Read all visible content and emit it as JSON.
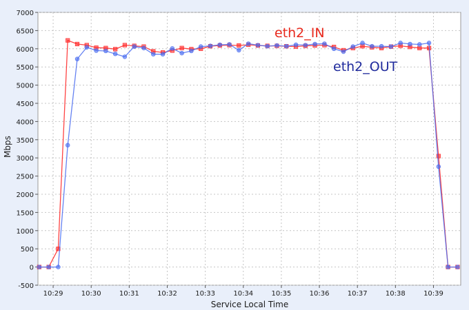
{
  "chart_data": {
    "type": "line",
    "title": "",
    "xlabel": "Service Local Time",
    "ylabel": "Mbps",
    "ylim": [
      -500,
      7000
    ],
    "yticks": [
      -500,
      0,
      500,
      1000,
      1500,
      2000,
      2500,
      3000,
      3500,
      4000,
      4500,
      5000,
      5500,
      6000,
      6500,
      7000
    ],
    "xlim": [
      "10:28:36",
      "10:39:43"
    ],
    "xticks": [
      "10:29",
      "10:30",
      "10:31",
      "10:32",
      "10:33",
      "10:34",
      "10:35",
      "10:36",
      "10:37",
      "10:38",
      "10:39"
    ],
    "grid": true,
    "legend": "inline labels top-right",
    "series": [
      {
        "name": "eth2_IN",
        "color": "#ff2222",
        "label_color": "#e8281c",
        "x": [
          "10:28:38",
          "10:28:53",
          "10:29:08",
          "10:29:23",
          "10:29:38",
          "10:29:53",
          "10:30:08",
          "10:30:23",
          "10:30:38",
          "10:30:53",
          "10:31:08",
          "10:31:23",
          "10:31:38",
          "10:31:53",
          "10:32:08",
          "10:32:23",
          "10:32:38",
          "10:32:53",
          "10:33:08",
          "10:33:23",
          "10:33:38",
          "10:33:53",
          "10:34:08",
          "10:34:23",
          "10:34:38",
          "10:34:53",
          "10:35:08",
          "10:35:23",
          "10:35:38",
          "10:35:53",
          "10:36:08",
          "10:36:23",
          "10:36:38",
          "10:36:53",
          "10:37:08",
          "10:37:23",
          "10:37:38",
          "10:37:53",
          "10:38:08",
          "10:38:23",
          "10:38:38",
          "10:38:53",
          "10:39:08",
          "10:39:23",
          "10:39:38"
        ],
        "y": [
          0,
          0,
          500,
          6230,
          6130,
          6100,
          6030,
          6020,
          5990,
          6100,
          6080,
          6060,
          5930,
          5900,
          5950,
          6020,
          5990,
          6000,
          6070,
          6090,
          6100,
          6090,
          6110,
          6090,
          6080,
          6080,
          6070,
          6060,
          6080,
          6090,
          6100,
          6050,
          5960,
          6020,
          6070,
          6040,
          6020,
          6060,
          6080,
          6050,
          6020,
          6020,
          3050,
          0,
          0
        ]
      },
      {
        "name": "eth2_OUT",
        "color": "#4a6cf0",
        "label_color": "#1f2a9c",
        "x": [
          "10:28:38",
          "10:28:53",
          "10:29:08",
          "10:29:23",
          "10:29:38",
          "10:29:53",
          "10:30:08",
          "10:30:23",
          "10:30:38",
          "10:30:53",
          "10:31:08",
          "10:31:23",
          "10:31:38",
          "10:31:53",
          "10:32:08",
          "10:32:23",
          "10:32:38",
          "10:32:53",
          "10:33:08",
          "10:33:23",
          "10:33:38",
          "10:33:53",
          "10:34:08",
          "10:34:23",
          "10:34:38",
          "10:34:53",
          "10:35:08",
          "10:35:23",
          "10:35:38",
          "10:35:53",
          "10:36:08",
          "10:36:23",
          "10:36:38",
          "10:36:53",
          "10:37:08",
          "10:37:23",
          "10:37:38",
          "10:37:53",
          "10:38:08",
          "10:38:23",
          "10:38:38",
          "10:38:53",
          "10:39:08",
          "10:39:23",
          "10:39:38"
        ],
        "y": [
          0,
          0,
          0,
          3350,
          5720,
          6040,
          5950,
          5940,
          5860,
          5780,
          6060,
          6020,
          5850,
          5850,
          6010,
          5880,
          5940,
          6060,
          6080,
          6110,
          6120,
          5960,
          6140,
          6100,
          6070,
          6090,
          6070,
          6110,
          6100,
          6130,
          6140,
          6000,
          5920,
          6060,
          6160,
          6070,
          6070,
          6060,
          6160,
          6130,
          6120,
          6160,
          2760,
          0,
          0
        ]
      }
    ]
  }
}
